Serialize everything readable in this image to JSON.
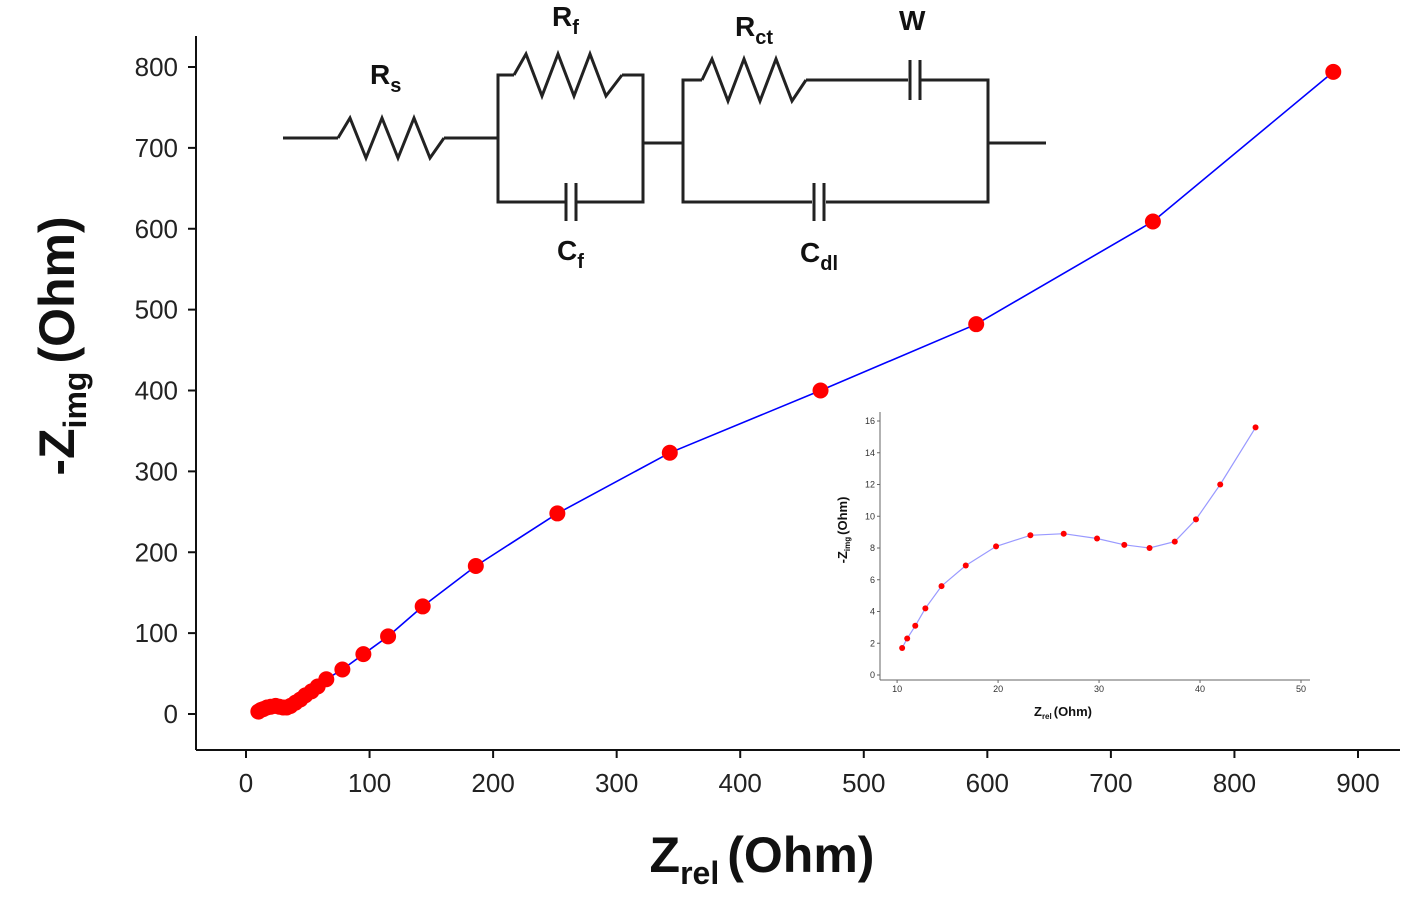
{
  "chart_data": [
    {
      "type": "line",
      "xlabel": "Z",
      "xlabel_sub": "rel",
      "xlabel_unit": "(Ohm)",
      "ylabel": "-Z",
      "ylabel_sub": "img",
      "ylabel_unit": "(Ohm)",
      "xlim": [
        0,
        900
      ],
      "ylim": [
        0,
        800
      ],
      "x_ticks": [
        0,
        100,
        200,
        300,
        400,
        500,
        600,
        700,
        800,
        900
      ],
      "y_ticks": [
        0,
        100,
        200,
        300,
        400,
        500,
        600,
        700,
        800
      ],
      "grid": false,
      "line_color": "#0000ff",
      "marker_color": "#ff0000",
      "series": [
        {
          "x": [
            10,
            12,
            14,
            17,
            20,
            24,
            27,
            30,
            33,
            36,
            40,
            44,
            48,
            53,
            58,
            65,
            78,
            95,
            115,
            143,
            186,
            252,
            343,
            465,
            591,
            734,
            880
          ],
          "y": [
            3,
            5,
            6,
            8,
            9,
            10,
            9,
            8,
            8,
            10,
            14,
            18,
            23,
            28,
            34,
            43,
            55,
            74,
            96,
            133,
            183,
            248,
            323,
            400,
            482,
            609,
            794
          ]
        }
      ]
    },
    {
      "type": "line",
      "inset": true,
      "xlabel": "Z",
      "xlabel_sub": "rel",
      "xlabel_unit": "(Ohm)",
      "ylabel": "-Z",
      "ylabel_sub": "img",
      "ylabel_unit": "(Ohm)",
      "xlim": [
        9,
        50
      ],
      "ylim": [
        0,
        16
      ],
      "x_ticks": [
        10,
        20,
        30,
        40,
        50
      ],
      "y_ticks": [
        0,
        2,
        4,
        6,
        8,
        10,
        12,
        14,
        16
      ],
      "line_color": "#9999ff",
      "marker_color": "#ff0000",
      "series": [
        {
          "x": [
            10.5,
            11.0,
            11.8,
            12.8,
            14.4,
            16.8,
            19.8,
            23.2,
            26.5,
            29.8,
            32.5,
            35.0,
            37.5,
            39.6,
            42.0,
            45.5
          ],
          "y": [
            1.7,
            2.3,
            3.1,
            4.2,
            5.6,
            6.9,
            8.1,
            8.8,
            8.9,
            8.6,
            8.2,
            8.0,
            8.4,
            9.8,
            12.0,
            15.6
          ]
        }
      ]
    }
  ],
  "circuit": {
    "labels": [
      {
        "main": "R",
        "sub": "s"
      },
      {
        "main": "R",
        "sub": "f"
      },
      {
        "main": "C",
        "sub": "f"
      },
      {
        "main": "R",
        "sub": "ct"
      },
      {
        "main": "W",
        "sub": ""
      },
      {
        "main": "C",
        "sub": "dl"
      }
    ]
  }
}
